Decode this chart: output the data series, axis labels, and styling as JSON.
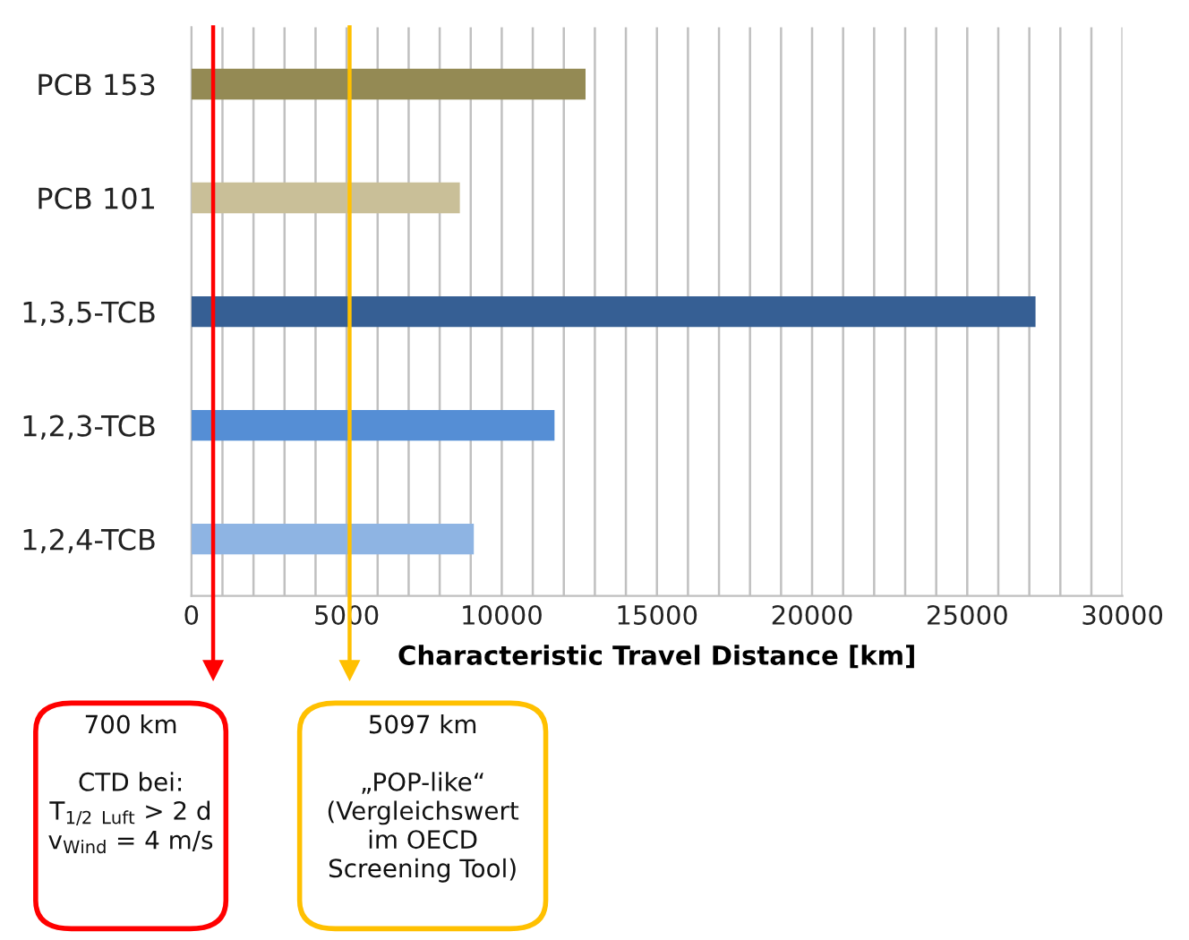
{
  "chart_data": {
    "type": "bar",
    "orientation": "horizontal",
    "categories": [
      "PCB 153",
      "PCB 101",
      "1,3,5-TCB",
      "1,2,3-TCB",
      "1,2,4-TCB"
    ],
    "values": [
      12700,
      8650,
      27200,
      11700,
      9100
    ],
    "colors": [
      "#948a54",
      "#c9bf98",
      "#365f94",
      "#558ed5",
      "#8eb4e3"
    ],
    "xlabel": "Characteristic Travel Distance [km]",
    "xlim": [
      0,
      30000
    ],
    "xticks": [
      0,
      {
        "value": 1000,
        "label": null
      },
      {
        "value": 2000,
        "label": null
      },
      {
        "value": 3000,
        "label": null
      },
      {
        "value": 4000,
        "label": null
      },
      5000,
      {
        "value": 6000,
        "label": null
      },
      {
        "value": 7000,
        "label": null
      },
      {
        "value": 8000,
        "label": null
      },
      {
        "value": 9000,
        "label": null
      },
      10000,
      {
        "value": 11000,
        "label": null
      },
      {
        "value": 12000,
        "label": null
      },
      {
        "value": 13000,
        "label": null
      },
      {
        "value": 14000,
        "label": null
      },
      15000,
      {
        "value": 16000,
        "label": null
      },
      {
        "value": 17000,
        "label": null
      },
      {
        "value": 18000,
        "label": null
      },
      {
        "value": 19000,
        "label": null
      },
      20000,
      {
        "value": 21000,
        "label": null
      },
      {
        "value": 22000,
        "label": null
      },
      {
        "value": 23000,
        "label": null
      },
      {
        "value": 24000,
        "label": null
      },
      25000,
      {
        "value": 26000,
        "label": null
      },
      {
        "value": 27000,
        "label": null
      },
      {
        "value": 28000,
        "label": null
      },
      {
        "value": 29000,
        "label": null
      },
      30000
    ],
    "grid": "x",
    "ref_lines": [
      {
        "axis": "x",
        "value": 700,
        "color": "#ff0000",
        "label": "700 km\n\nCTD bei:\nT$_{1/2}$ $_{Luft}$ > 2 d\nv$_{Wind}$ = 4 m/s"
      },
      {
        "axis": "x",
        "value": 5097,
        "color": "#ffc000",
        "label": "5097 km\n\n„POP-like“\n(Vergleichswert\nim OECD\nScreening Tool)"
      }
    ]
  }
}
